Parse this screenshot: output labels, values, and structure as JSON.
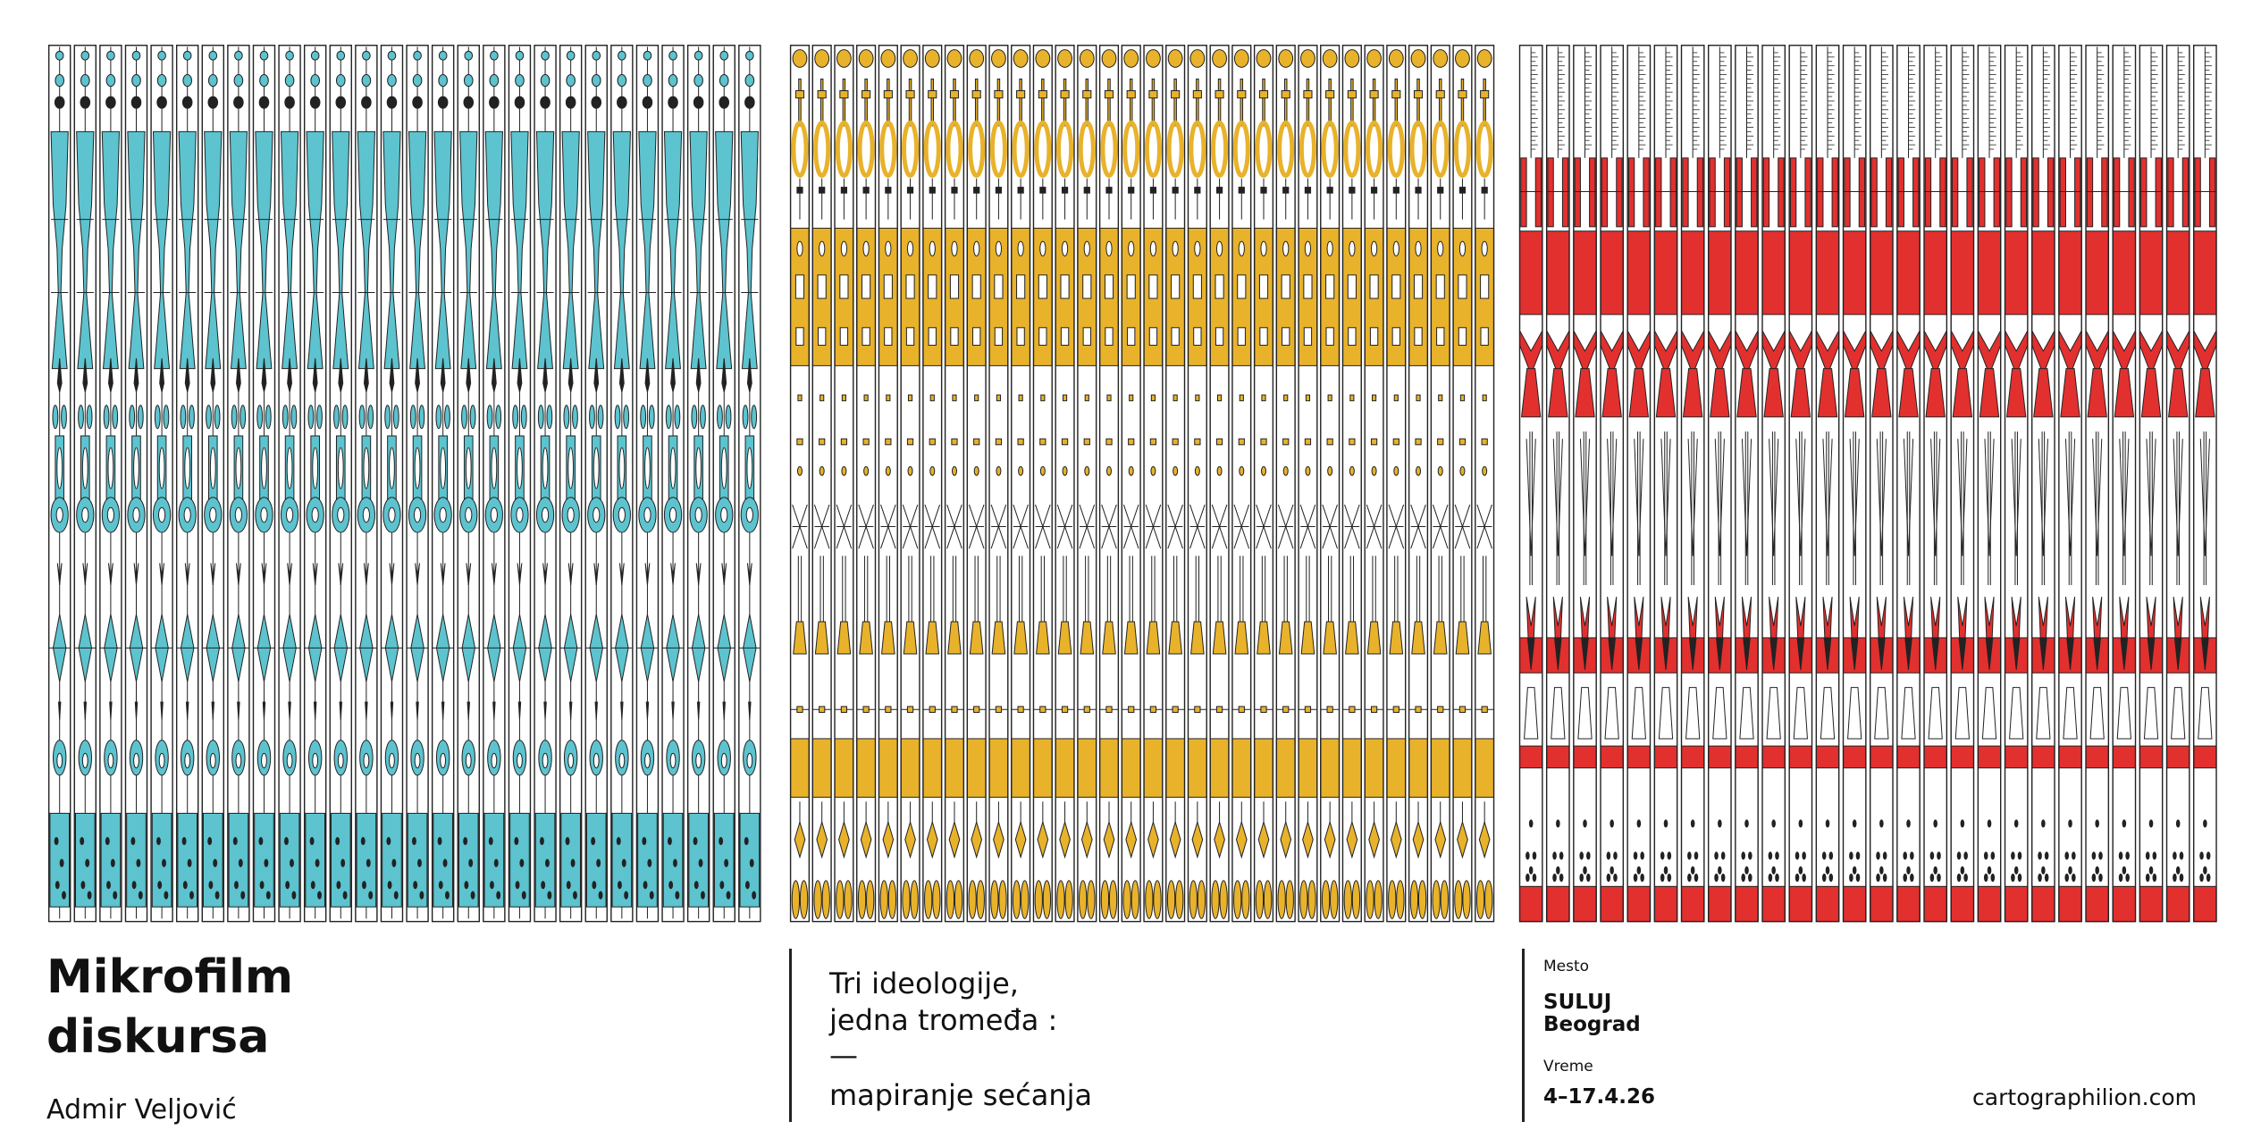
{
  "title": {
    "lines": [
      "Mikrofilm",
      "diskursa"
    ]
  },
  "author": "Admir Veljović",
  "subtitle": {
    "lines": [
      "Tri ideologije,",
      "jedna tromeđa :",
      "—",
      "mapiranje sećanja"
    ]
  },
  "info": {
    "place_label": "Mesto",
    "place": [
      "SULUJ",
      "Beograd"
    ],
    "time_label": "Vreme",
    "time": "4–17.4.26"
  },
  "website": "cartographilion.com"
}
